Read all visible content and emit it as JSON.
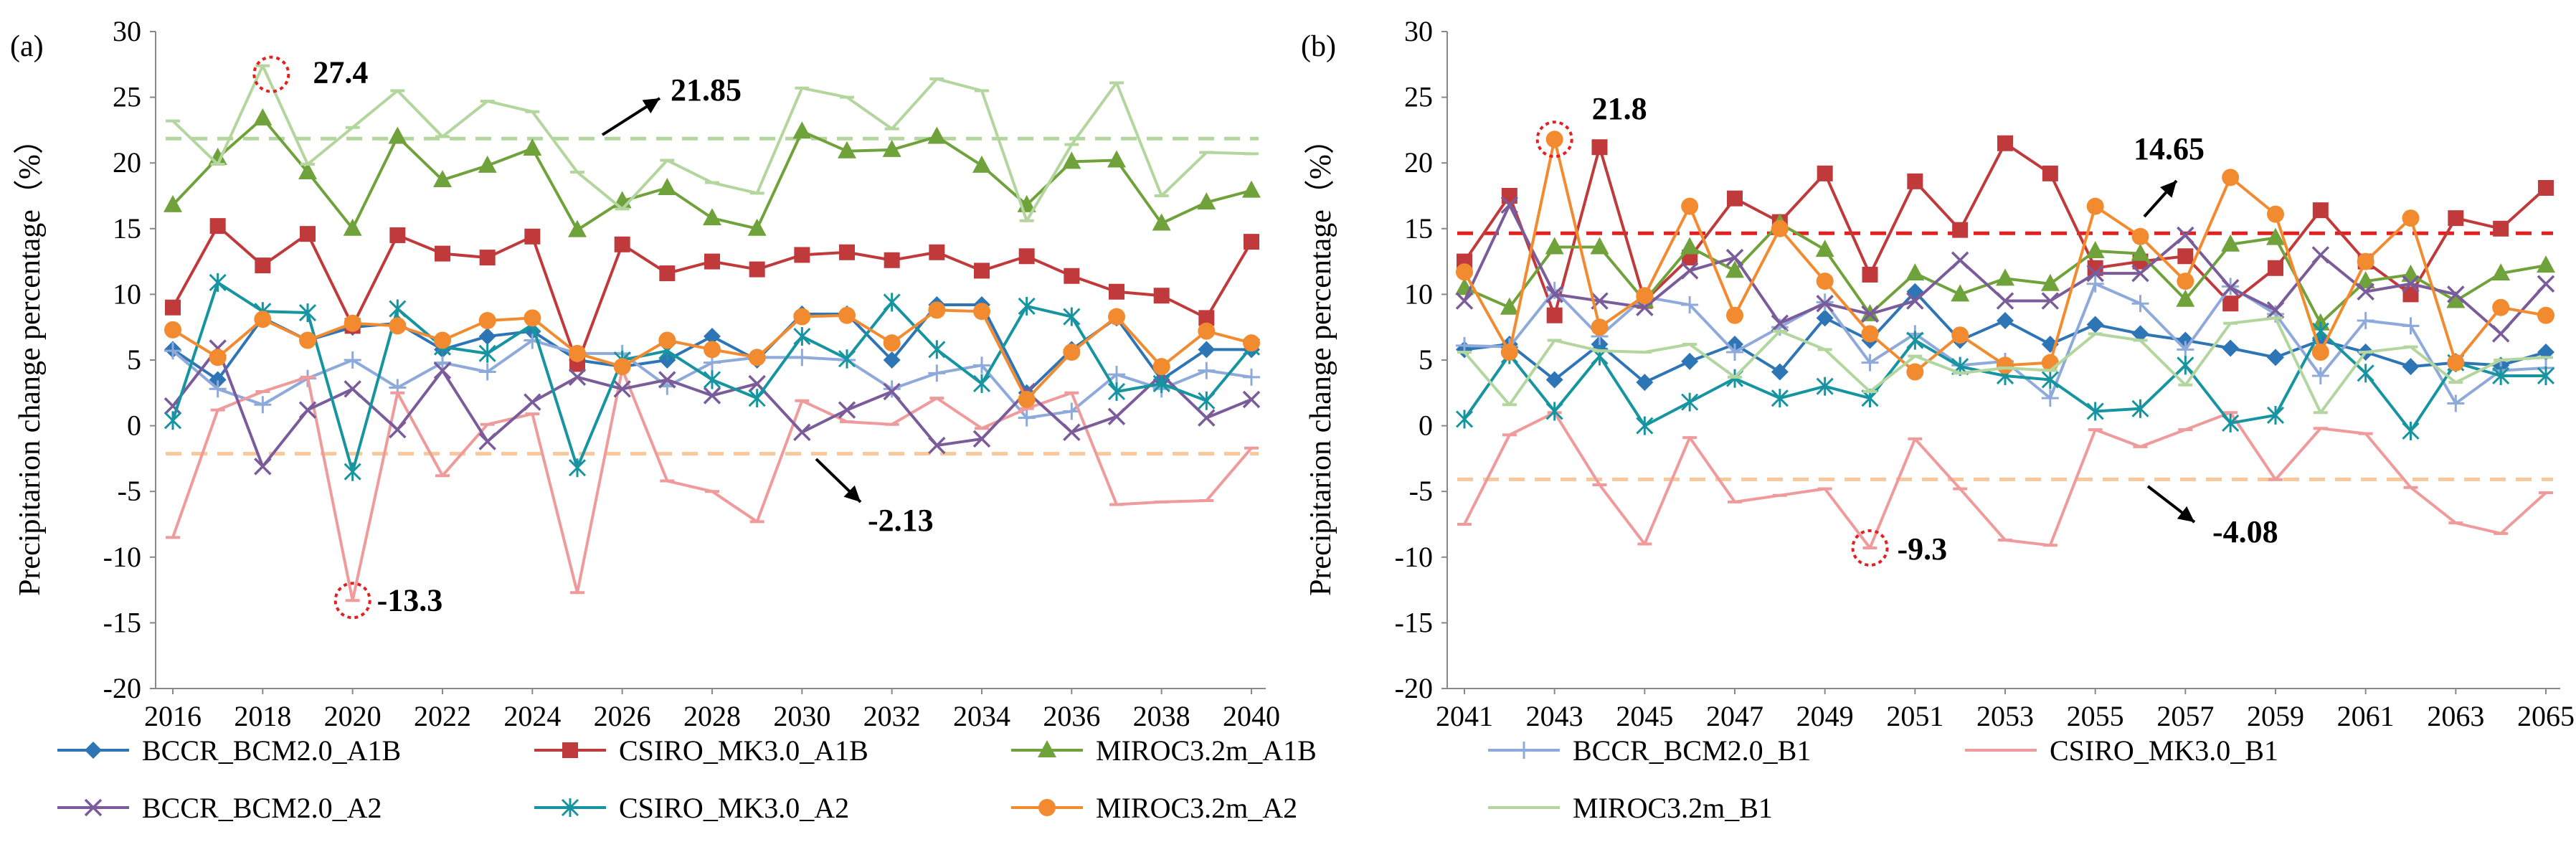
{
  "chart_data": [
    {
      "type": "line",
      "panel_label": "(a)",
      "ylabel": "Precipitarion change percentage（%）",
      "xlabel": "",
      "x": [
        2016,
        2017,
        2018,
        2019,
        2020,
        2021,
        2022,
        2023,
        2024,
        2025,
        2026,
        2027,
        2028,
        2029,
        2030,
        2031,
        2032,
        2033,
        2034,
        2035,
        2036,
        2037,
        2038,
        2039,
        2040
      ],
      "x_tick_labels": [
        "2016",
        "2018",
        "2020",
        "2022",
        "2024",
        "2026",
        "2028",
        "2030",
        "2032",
        "2034",
        "2036",
        "2038",
        "2040"
      ],
      "ylim": [
        -20,
        30
      ],
      "y_tick_labels": [
        "-20",
        "-15",
        "-10",
        "-5",
        "0",
        "5",
        "10",
        "15",
        "20",
        "25",
        "30"
      ],
      "grid": false,
      "series": [
        {
          "name": "BCCR_BCM2.0_A1B",
          "color": "#2e75b6",
          "marker": "diamond",
          "values": [
            5.8,
            3.5,
            8.2,
            6.5,
            7.5,
            7.8,
            5.8,
            6.8,
            7.2,
            5.0,
            4.5,
            5.0,
            6.8,
            5.0,
            8.5,
            8.5,
            5.0,
            9.2,
            9.2,
            2.5,
            5.8,
            8.2,
            3.5,
            5.8,
            5.8
          ]
        },
        {
          "name": "CSIRO_MK3.0_A1B",
          "color": "#c0393b",
          "marker": "square",
          "values": [
            9.0,
            15.2,
            12.2,
            14.6,
            7.6,
            14.5,
            13.1,
            12.8,
            14.4,
            4.7,
            13.8,
            11.6,
            12.5,
            11.9,
            13.0,
            13.2,
            12.6,
            13.2,
            11.8,
            12.9,
            11.4,
            10.2,
            9.9,
            8.2,
            14.0
          ]
        },
        {
          "name": "MIROC3.2m_A1B",
          "color": "#70a23c",
          "marker": "triangle",
          "values": [
            16.8,
            20.4,
            23.4,
            19.3,
            15.0,
            22.0,
            18.7,
            19.8,
            21.1,
            14.9,
            17.1,
            18.1,
            15.8,
            15.0,
            22.4,
            20.9,
            21.0,
            22.0,
            19.8,
            16.8,
            20.1,
            20.2,
            15.4,
            17.0,
            17.9
          ]
        },
        {
          "name": "BCCR_BCM2.0_B1",
          "color": "#8eaadb",
          "marker": "plus",
          "values": [
            5.7,
            2.8,
            1.6,
            3.6,
            5.0,
            2.9,
            4.8,
            4.1,
            6.5,
            5.5,
            5.5,
            3.0,
            4.8,
            5.2,
            5.2,
            5.0,
            2.8,
            4.0,
            4.6,
            0.6,
            1.1,
            3.9,
            2.8,
            4.2,
            3.7
          ]
        },
        {
          "name": "CSIRO_MK3.0_B1",
          "color": "#ef9a9b",
          "marker": "dash",
          "values": [
            -8.5,
            1.2,
            2.6,
            3.7,
            -13.3,
            2.5,
            -3.8,
            0.1,
            0.9,
            -12.7,
            4.3,
            -4.2,
            -5.0,
            -7.3,
            1.9,
            0.3,
            0.1,
            2.1,
            -0.2,
            1.3,
            2.5,
            -6.0,
            -5.8,
            -5.7,
            -1.7
          ]
        },
        {
          "name": "BCCR_BCM2.0_A2",
          "color": "#7a5c9a",
          "marker": "x",
          "values": [
            1.5,
            5.9,
            -3.1,
            1.2,
            2.8,
            -0.3,
            4.2,
            -1.2,
            1.8,
            3.7,
            2.8,
            3.5,
            2.3,
            3.2,
            -0.5,
            1.2,
            2.6,
            -1.5,
            -1.0,
            2.6,
            -0.5,
            0.7,
            3.9,
            0.6,
            2.0
          ]
        },
        {
          "name": "CSIRO_MK3.0_A2",
          "color": "#1694a0",
          "marker": "star",
          "values": [
            0.4,
            10.9,
            8.7,
            8.6,
            -3.5,
            8.9,
            6.0,
            5.5,
            7.7,
            -3.2,
            5.0,
            5.7,
            3.5,
            2.1,
            6.8,
            5.1,
            9.4,
            5.8,
            3.2,
            9.1,
            8.3,
            2.6,
            3.2,
            1.9,
            6.0
          ]
        },
        {
          "name": "MIROC3.2m_A2",
          "color": "#f28b30",
          "marker": "circle",
          "values": [
            7.3,
            5.2,
            8.1,
            6.5,
            7.8,
            7.6,
            6.5,
            8.0,
            8.2,
            5.5,
            4.5,
            6.5,
            5.8,
            5.2,
            8.3,
            8.4,
            6.3,
            8.8,
            8.7,
            2.0,
            5.6,
            8.3,
            4.5,
            7.2,
            6.3
          ]
        },
        {
          "name": "MIROC3.2m_B1",
          "color": "#b3d59e",
          "marker": "dash",
          "values": [
            23.2,
            19.9,
            27.4,
            19.9,
            22.7,
            25.5,
            22.0,
            24.7,
            23.9,
            19.3,
            16.5,
            20.2,
            18.5,
            17.7,
            25.7,
            25.0,
            22.6,
            26.4,
            25.5,
            15.6,
            21.4,
            26.1,
            17.5,
            20.8,
            20.7
          ]
        }
      ],
      "reference_lines": [
        {
          "value": 21.85,
          "color": "#b3d59e",
          "style": "dashed"
        },
        {
          "value": -2.13,
          "color": "#f8c89a",
          "style": "dashed"
        }
      ],
      "annotations": [
        {
          "text": "27.4",
          "x": 2018,
          "y": 27.4,
          "circled": true
        },
        {
          "text": "-13.3",
          "x": 2020,
          "y": -13.3,
          "circled": true
        },
        {
          "text": "21.85",
          "arrow": true
        },
        {
          "text": "-2.13",
          "arrow": true
        }
      ]
    },
    {
      "type": "line",
      "panel_label": "(b)",
      "ylabel": "Precipitarion change percentage（%）",
      "xlabel": "",
      "x": [
        2041,
        2042,
        2043,
        2044,
        2045,
        2046,
        2047,
        2048,
        2049,
        2050,
        2051,
        2052,
        2053,
        2054,
        2055,
        2056,
        2057,
        2058,
        2059,
        2060,
        2061,
        2062,
        2063,
        2064,
        2065
      ],
      "x_tick_labels": [
        "2041",
        "2043",
        "2045",
        "2047",
        "2049",
        "2051",
        "2053",
        "2055",
        "2057",
        "2059",
        "2061",
        "2063",
        "2065"
      ],
      "ylim": [
        -20,
        30
      ],
      "y_tick_labels": [
        "-20",
        "-15",
        "-10",
        "-5",
        "0",
        "5",
        "10",
        "15",
        "20",
        "25",
        "30"
      ],
      "grid": false,
      "series": [
        {
          "name": "BCCR_BCM2.0_A1B",
          "color": "#2e75b6",
          "marker": "diamond",
          "values": [
            5.8,
            6.2,
            3.5,
            6.2,
            3.3,
            4.9,
            6.2,
            4.1,
            8.2,
            6.5,
            10.2,
            6.5,
            8.0,
            6.2,
            7.7,
            7.0,
            6.5,
            5.9,
            5.2,
            6.5,
            5.6,
            4.5,
            4.8,
            4.6,
            5.6
          ]
        },
        {
          "name": "CSIRO_MK3.0_A1B",
          "color": "#c0393b",
          "marker": "square",
          "values": [
            12.5,
            17.5,
            8.4,
            21.2,
            9.5,
            12.8,
            17.3,
            15.5,
            19.2,
            11.5,
            18.6,
            14.9,
            21.5,
            19.2,
            12.0,
            12.5,
            12.9,
            9.3,
            12.0,
            16.4,
            12.5,
            10.0,
            15.8,
            15.0,
            18.1
          ]
        },
        {
          "name": "MIROC3.2m_A1B",
          "color": "#70a23c",
          "marker": "triangle",
          "values": [
            10.5,
            9.0,
            13.6,
            13.6,
            9.5,
            13.6,
            11.8,
            15.4,
            13.4,
            8.5,
            11.6,
            10.0,
            11.2,
            10.8,
            13.3,
            13.1,
            9.6,
            13.8,
            14.3,
            7.8,
            11.0,
            11.5,
            9.5,
            11.6,
            12.2
          ]
        },
        {
          "name": "BCCR_BCM2.0_B1",
          "color": "#8eaadb",
          "marker": "plus",
          "values": [
            6.1,
            6.0,
            10.3,
            6.8,
            9.8,
            9.2,
            5.6,
            7.5,
            9.4,
            4.8,
            7.0,
            4.6,
            4.9,
            2.1,
            10.8,
            9.3,
            5.8,
            10.6,
            8.5,
            3.8,
            8.0,
            7.6,
            1.7,
            4.2,
            4.4
          ]
        },
        {
          "name": "CSIRO_MK3.0_B1",
          "color": "#ef9a9b",
          "marker": "dash",
          "values": [
            -7.5,
            -0.7,
            1.0,
            -4.5,
            -9.0,
            -0.9,
            -5.8,
            -5.3,
            -4.8,
            -9.3,
            -1.0,
            -4.8,
            -8.7,
            -9.1,
            -0.3,
            -1.6,
            -0.3,
            1.0,
            -4.1,
            -0.2,
            -0.6,
            -4.7,
            -7.4,
            -8.2,
            -5.1
          ]
        },
        {
          "name": "BCCR_BCM2.0_A2",
          "color": "#7a5c9a",
          "marker": "x",
          "values": [
            9.5,
            16.8,
            10.0,
            9.5,
            9.0,
            11.8,
            12.8,
            7.8,
            9.3,
            8.5,
            9.5,
            12.6,
            9.5,
            9.5,
            11.6,
            11.6,
            14.5,
            10.5,
            8.8,
            13.0,
            10.2,
            10.8,
            10.0,
            7.0,
            10.8
          ]
        },
        {
          "name": "CSIRO_MK3.0_A2",
          "color": "#1694a0",
          "marker": "star",
          "values": [
            0.5,
            5.4,
            1.1,
            5.3,
            0.0,
            1.8,
            3.6,
            2.1,
            3.0,
            2.1,
            6.5,
            4.5,
            3.8,
            3.5,
            1.1,
            1.3,
            4.6,
            0.2,
            0.8,
            7.2,
            4.0,
            -0.4,
            4.8,
            3.8,
            3.8
          ]
        },
        {
          "name": "MIROC3.2m_A2",
          "color": "#f28b30",
          "marker": "circle",
          "values": [
            11.7,
            5.6,
            21.8,
            7.5,
            9.9,
            16.7,
            8.4,
            15.0,
            11.0,
            7.0,
            4.1,
            6.9,
            4.6,
            4.8,
            16.7,
            14.4,
            11.0,
            18.9,
            16.1,
            5.6,
            12.5,
            15.8,
            4.8,
            9.0,
            8.4
          ]
        },
        {
          "name": "MIROC3.2m_B1",
          "color": "#b3d59e",
          "marker": "dash",
          "values": [
            5.6,
            1.6,
            6.5,
            5.7,
            5.6,
            6.2,
            3.7,
            7.2,
            5.8,
            2.6,
            5.3,
            4.0,
            4.4,
            4.2,
            7.0,
            6.5,
            3.1,
            7.8,
            8.2,
            1.0,
            5.6,
            6.0,
            3.3,
            5.0,
            5.2
          ]
        }
      ],
      "reference_lines": [
        {
          "value": 14.65,
          "color": "#e41f1f",
          "style": "dashed"
        },
        {
          "value": -4.08,
          "color": "#f8c89a",
          "style": "dashed"
        }
      ],
      "annotations": [
        {
          "text": "21.8",
          "x": 2043,
          "y": 21.8,
          "circled": true
        },
        {
          "text": "-9.3",
          "x": 2050,
          "y": -9.3,
          "circled": true
        },
        {
          "text": "14.65",
          "arrow": true
        },
        {
          "text": "-4.08",
          "arrow": true
        }
      ]
    }
  ],
  "legend": {
    "rows": [
      [
        "BCCR_BCM2.0_A1B",
        "CSIRO_MK3.0_A1B",
        "MIROC3.2m_A1B",
        "BCCR_BCM2.0_B1",
        "CSIRO_MK3.0_B1"
      ],
      [
        "BCCR_BCM2.0_A2",
        "CSIRO_MK3.0_A2",
        "MIROC3.2m_A2",
        "MIROC3.2m_B1"
      ]
    ]
  }
}
